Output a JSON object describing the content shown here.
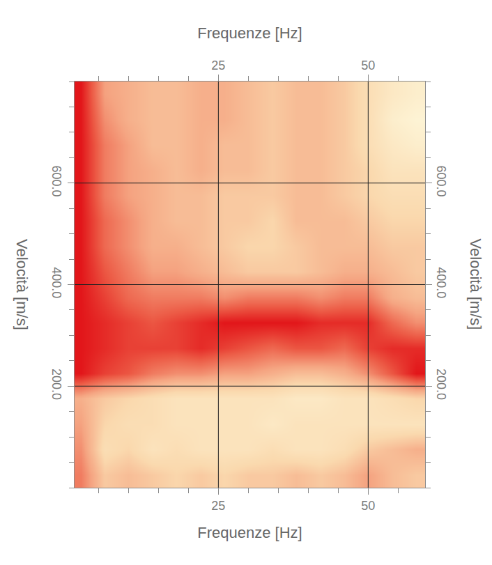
{
  "chart_data": {
    "type": "heatmap",
    "xlabel": "Frequenze [Hz]",
    "ylabel": "Velocità [m/s]",
    "x": [
      2,
      6,
      10,
      14,
      18,
      22,
      26,
      30,
      34,
      38,
      42,
      46,
      50,
      54,
      58
    ],
    "y": [
      25,
      75,
      125,
      175,
      225,
      275,
      325,
      375,
      425,
      475,
      525,
      575,
      625,
      675,
      725,
      775
    ],
    "z": [
      [
        0.7,
        0.45,
        0.5,
        0.45,
        0.4,
        0.45,
        0.4,
        0.45,
        0.45,
        0.5,
        0.45,
        0.5,
        0.6,
        0.5,
        0.45
      ],
      [
        0.65,
        0.35,
        0.4,
        0.3,
        0.35,
        0.3,
        0.3,
        0.3,
        0.35,
        0.3,
        0.3,
        0.35,
        0.45,
        0.5,
        0.55
      ],
      [
        0.6,
        0.4,
        0.35,
        0.35,
        0.3,
        0.3,
        0.3,
        0.3,
        0.25,
        0.3,
        0.3,
        0.3,
        0.3,
        0.3,
        0.3
      ],
      [
        0.55,
        0.45,
        0.4,
        0.35,
        0.3,
        0.3,
        0.3,
        0.3,
        0.3,
        0.25,
        0.25,
        0.3,
        0.3,
        0.35,
        0.4
      ],
      [
        0.95,
        0.85,
        0.8,
        0.7,
        0.65,
        0.65,
        0.6,
        0.6,
        0.55,
        0.5,
        0.5,
        0.55,
        0.65,
        0.8,
        0.95
      ],
      [
        0.95,
        0.9,
        0.85,
        0.85,
        0.85,
        0.9,
        0.85,
        0.8,
        0.75,
        0.8,
        0.8,
        0.75,
        0.85,
        0.9,
        0.9
      ],
      [
        0.95,
        0.9,
        0.85,
        0.8,
        0.85,
        0.9,
        0.95,
        0.95,
        0.95,
        0.95,
        0.9,
        0.9,
        0.9,
        0.75,
        0.65
      ],
      [
        0.95,
        0.85,
        0.75,
        0.7,
        0.7,
        0.7,
        0.65,
        0.7,
        0.7,
        0.7,
        0.65,
        0.7,
        0.7,
        0.55,
        0.5
      ],
      [
        0.95,
        0.8,
        0.7,
        0.6,
        0.6,
        0.55,
        0.5,
        0.45,
        0.45,
        0.45,
        0.5,
        0.55,
        0.55,
        0.5,
        0.45
      ],
      [
        0.95,
        0.75,
        0.65,
        0.55,
        0.55,
        0.5,
        0.45,
        0.4,
        0.4,
        0.45,
        0.5,
        0.5,
        0.5,
        0.45,
        0.45
      ],
      [
        0.95,
        0.75,
        0.65,
        0.55,
        0.5,
        0.5,
        0.45,
        0.45,
        0.4,
        0.5,
        0.5,
        0.5,
        0.45,
        0.4,
        0.4
      ],
      [
        0.95,
        0.7,
        0.6,
        0.55,
        0.5,
        0.5,
        0.45,
        0.45,
        0.45,
        0.5,
        0.5,
        0.45,
        0.4,
        0.35,
        0.35
      ],
      [
        0.95,
        0.7,
        0.6,
        0.55,
        0.5,
        0.55,
        0.5,
        0.5,
        0.45,
        0.5,
        0.5,
        0.45,
        0.4,
        0.3,
        0.3
      ],
      [
        0.95,
        0.7,
        0.6,
        0.5,
        0.5,
        0.55,
        0.5,
        0.5,
        0.45,
        0.5,
        0.5,
        0.45,
        0.35,
        0.25,
        0.2
      ],
      [
        0.95,
        0.65,
        0.55,
        0.5,
        0.5,
        0.55,
        0.55,
        0.5,
        0.45,
        0.5,
        0.5,
        0.45,
        0.35,
        0.2,
        0.15
      ],
      [
        0.95,
        0.6,
        0.55,
        0.5,
        0.5,
        0.55,
        0.55,
        0.5,
        0.45,
        0.5,
        0.5,
        0.45,
        0.35,
        0.25,
        0.2
      ]
    ],
    "xlim": [
      1,
      59.5
    ],
    "ylim": [
      0,
      800
    ],
    "xticks": [
      25,
      50
    ],
    "yticks": [
      {
        "value": 200,
        "label": "200.0"
      },
      {
        "value": 400,
        "label": "400.0"
      },
      {
        "value": 600,
        "label": "600.0"
      }
    ],
    "grid": true
  }
}
